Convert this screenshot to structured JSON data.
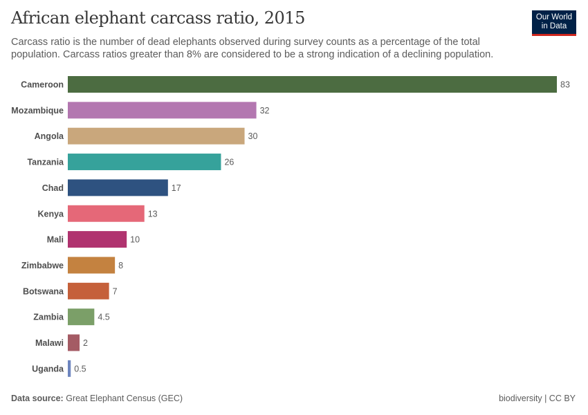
{
  "header": {
    "title": "African elephant carcass ratio, 2015",
    "subtitle": "Carcass ratio is the number of dead elephants observed during survey counts as a percentage of the total population. Carcass ratios greater than 8% are considered to be a strong indication of a declining population.",
    "logo_line1": "Our World",
    "logo_line2": "in Data"
  },
  "footer": {
    "source_label": "Data source:",
    "source": "Great Elephant Census (GEC)",
    "right": "biodiversity | CC BY"
  },
  "chart_data": {
    "type": "bar",
    "orientation": "horizontal",
    "title": "African elephant carcass ratio, 2015",
    "categories": [
      "Cameroon",
      "Mozambique",
      "Angola",
      "Tanzania",
      "Chad",
      "Kenya",
      "Mali",
      "Zimbabwe",
      "Botswana",
      "Zambia",
      "Malawi",
      "Uganda"
    ],
    "values": [
      83,
      32,
      30,
      26,
      17,
      13,
      10,
      8,
      7,
      4.5,
      2,
      0.5
    ],
    "value_labels": [
      "83",
      "32",
      "30",
      "26",
      "17",
      "13",
      "10",
      "8",
      "7",
      "4.5",
      "2",
      "0.5"
    ],
    "colors": [
      "#4c6c41",
      "#b377b0",
      "#c9a77c",
      "#36a29b",
      "#2e5280",
      "#e56878",
      "#b0336f",
      "#c48240",
      "#c5603a",
      "#7b9f68",
      "#a45b64",
      "#6d85bf"
    ],
    "xlim": [
      0,
      83
    ],
    "grid": false,
    "legend": "none"
  }
}
